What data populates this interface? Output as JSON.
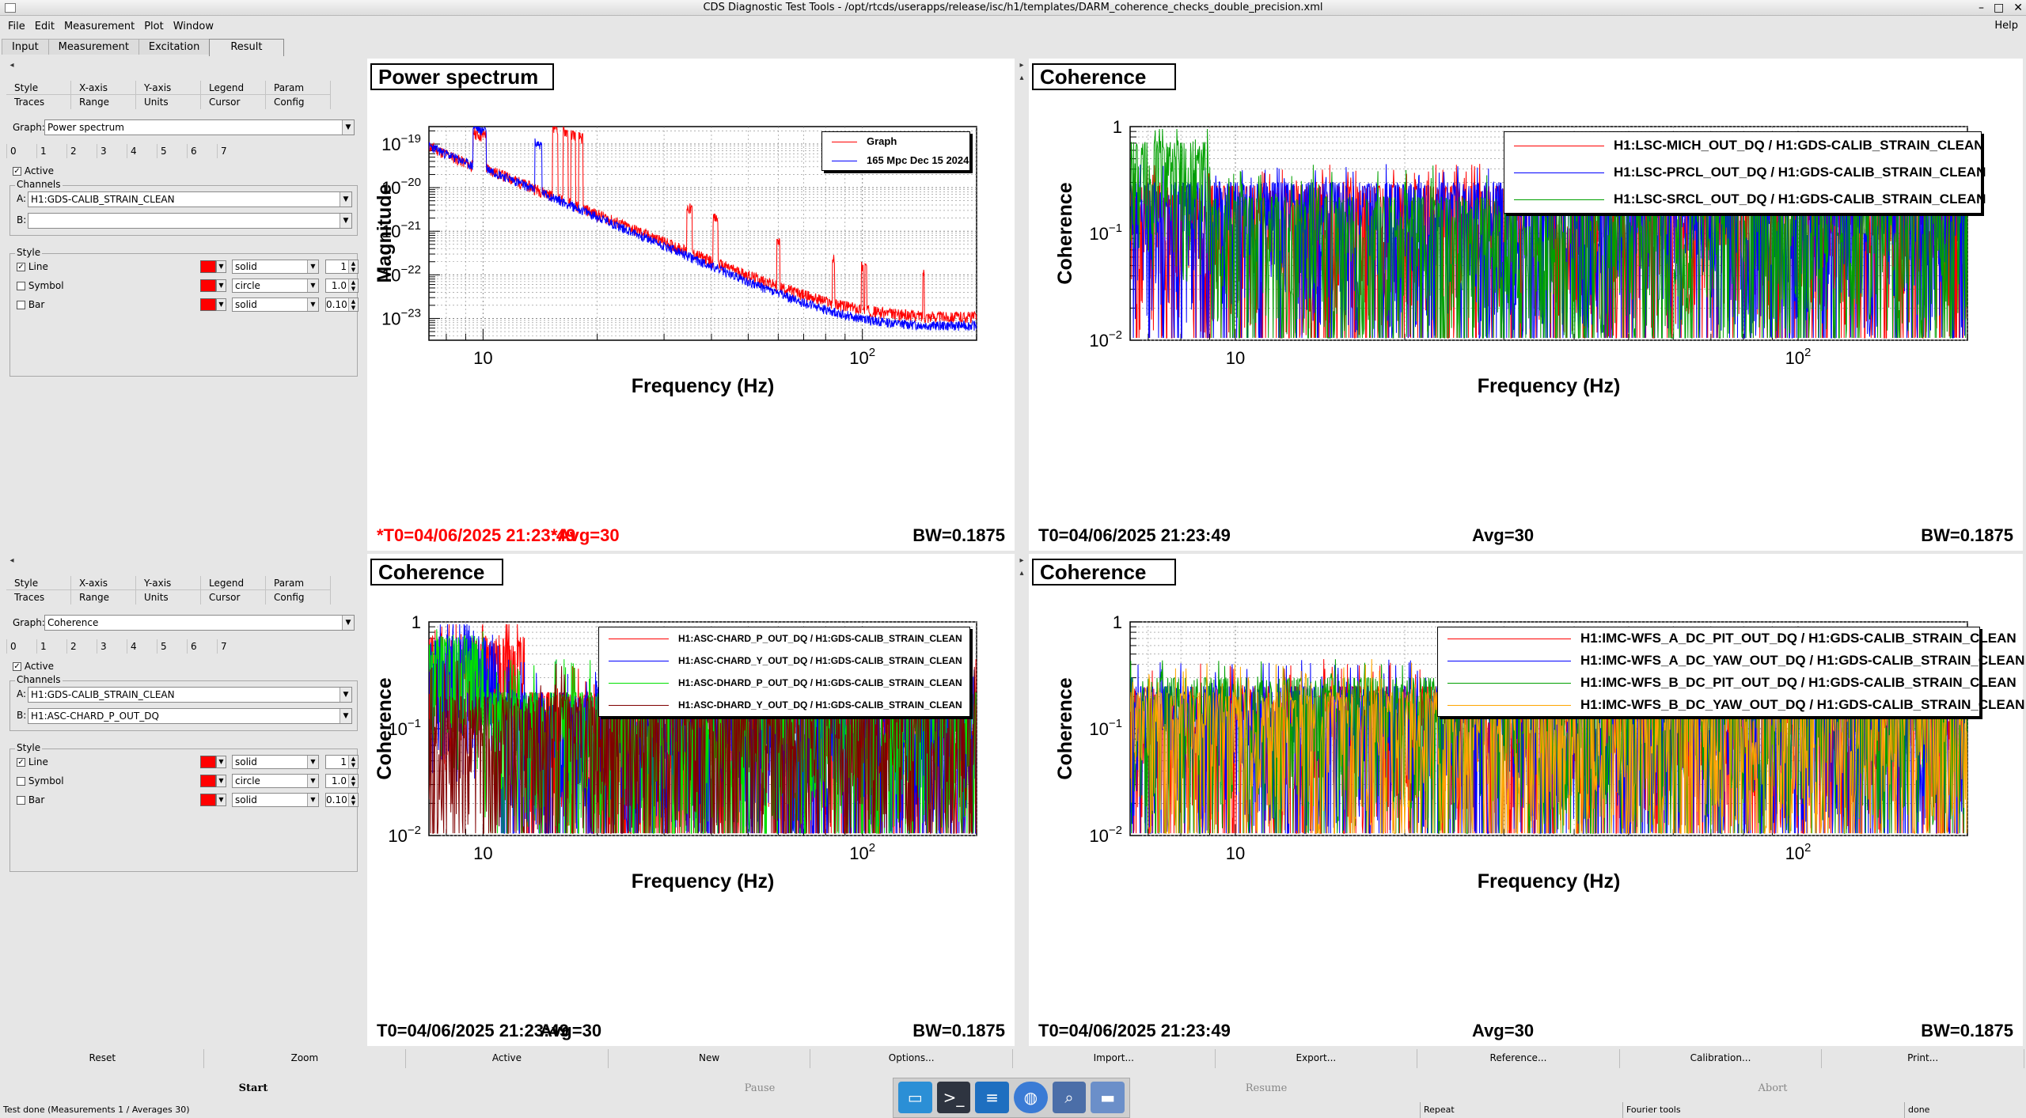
{
  "window": {
    "title": "CDS Diagnostic Test Tools - /opt/rtcds/userapps/release/isc/h1/templates/DARM_coherence_checks_double_precision.xml",
    "close_glyph": "✕",
    "minimize_glyph": "–",
    "maximize_glyph": "□"
  },
  "menu": {
    "items": [
      "File",
      "Edit",
      "Measurement",
      "Plot",
      "Window"
    ],
    "help": "Help"
  },
  "tabs": [
    "Input",
    "Measurement",
    "Excitation",
    "Result"
  ],
  "selected_tab": "Result",
  "control_panels": [
    {
      "tab_row1": [
        "Style",
        "X-axis",
        "Y-axis",
        "Legend",
        "Param"
      ],
      "tab_row2": [
        "Traces",
        "Range",
        "Units",
        "Cursor",
        "Config"
      ],
      "graph_label": "Graph:",
      "graph_value": "Power spectrum",
      "trace_numbers": [
        "0",
        "1",
        "2",
        "3",
        "4",
        "5",
        "6",
        "7"
      ],
      "active_label": "Active",
      "channels_label": "Channels",
      "channel_a_label": "A:",
      "channel_a": "H1:GDS-CALIB_STRAIN_CLEAN",
      "channel_b_label": "B:",
      "channel_b": "",
      "style_label": "Style",
      "style_rows": [
        {
          "name": "Line",
          "checked": true,
          "style": "solid",
          "value": "1"
        },
        {
          "name": "Symbol",
          "checked": false,
          "style": "circle",
          "value": "1.0"
        },
        {
          "name": "Bar",
          "checked": false,
          "style": "solid",
          "value": "0.10"
        }
      ]
    },
    {
      "tab_row1": [
        "Style",
        "X-axis",
        "Y-axis",
        "Legend",
        "Param"
      ],
      "tab_row2": [
        "Traces",
        "Range",
        "Units",
        "Cursor",
        "Config"
      ],
      "graph_label": "Graph:",
      "graph_value": "Coherence",
      "trace_numbers": [
        "0",
        "1",
        "2",
        "3",
        "4",
        "5",
        "6",
        "7"
      ],
      "active_label": "Active",
      "channels_label": "Channels",
      "channel_a_label": "A:",
      "channel_a": "H1:GDS-CALIB_STRAIN_CLEAN",
      "channel_b_label": "B:",
      "channel_b": "H1:ASC-CHARD_P_OUT_DQ",
      "style_label": "Style",
      "style_rows": [
        {
          "name": "Line",
          "checked": true,
          "style": "solid",
          "value": "1"
        },
        {
          "name": "Symbol",
          "checked": false,
          "style": "circle",
          "value": "1.0"
        },
        {
          "name": "Bar",
          "checked": false,
          "style": "solid",
          "value": "0.10"
        }
      ]
    }
  ],
  "colors": {
    "red": "#ff0000",
    "blue": "#0000ff",
    "green": "#00a000",
    "light_green": "#00e000",
    "dark_red": "#800000",
    "orange": "#ffa500",
    "status_red": "#ff0000"
  },
  "plots": [
    {
      "title": "Power spectrum",
      "ylabel": "Magnitude",
      "xlabel": "Frequency (Hz)",
      "y_ticks": [
        "10",
        "10",
        "10",
        "10",
        "10"
      ],
      "y_exps": [
        "−19",
        "−20",
        "−21",
        "−22",
        "−23"
      ],
      "x_ticks": [
        "10",
        "10"
      ],
      "x_exps": [
        "",
        "2"
      ],
      "legend": [
        "Graph",
        "165 Mpc Dec 15 2024"
      ],
      "t0": "*T0=04/06/2025 21:23:49",
      "avg": "*Avg=30",
      "bw": "BW=0.1875"
    },
    {
      "title": "Coherence",
      "ylabel": "Coherence",
      "xlabel": "Frequency (Hz)",
      "y_ticks": [
        "1",
        "10",
        "10"
      ],
      "y_exps": [
        "",
        "−1",
        "−2"
      ],
      "x_ticks": [
        "10",
        "10"
      ],
      "x_exps": [
        "",
        "2"
      ],
      "legend": [
        "H1:LSC-MICH_OUT_DQ / H1:GDS-CALIB_STRAIN_CLEAN",
        "H1:LSC-PRCL_OUT_DQ / H1:GDS-CALIB_STRAIN_CLEAN",
        "H1:LSC-SRCL_OUT_DQ / H1:GDS-CALIB_STRAIN_CLEAN"
      ],
      "t0": "T0=04/06/2025 21:23:49",
      "avg": "Avg=30",
      "bw": "BW=0.1875"
    },
    {
      "title": "Coherence",
      "ylabel": "Coherence",
      "xlabel": "Frequency (Hz)",
      "y_ticks": [
        "1",
        "10",
        "10"
      ],
      "y_exps": [
        "",
        "−1",
        "−2"
      ],
      "x_ticks": [
        "10",
        "10"
      ],
      "x_exps": [
        "",
        "2"
      ],
      "legend": [
        "H1:ASC-CHARD_P_OUT_DQ / H1:GDS-CALIB_STRAIN_CLEAN",
        "H1:ASC-CHARD_Y_OUT_DQ / H1:GDS-CALIB_STRAIN_CLEAN",
        "H1:ASC-DHARD_P_OUT_DQ / H1:GDS-CALIB_STRAIN_CLEAN",
        "H1:ASC-DHARD_Y_OUT_DQ / H1:GDS-CALIB_STRAIN_CLEAN"
      ],
      "t0": "T0=04/06/2025 21:23:49",
      "avg": "Avg=30",
      "bw": "BW=0.1875"
    },
    {
      "title": "Coherence",
      "ylabel": "Coherence",
      "xlabel": "Frequency (Hz)",
      "y_ticks": [
        "1",
        "10",
        "10"
      ],
      "y_exps": [
        "",
        "−1",
        "−2"
      ],
      "x_ticks": [
        "10",
        "10"
      ],
      "x_exps": [
        "",
        "2"
      ],
      "legend": [
        "H1:IMC-WFS_A_DC_PIT_OUT_DQ / H1:GDS-CALIB_STRAIN_CLEAN",
        "H1:IMC-WFS_A_DC_YAW_OUT_DQ / H1:GDS-CALIB_STRAIN_CLEAN",
        "H1:IMC-WFS_B_DC_PIT_OUT_DQ / H1:GDS-CALIB_STRAIN_CLEAN",
        "H1:IMC-WFS_B_DC_YAW_OUT_DQ / H1:GDS-CALIB_STRAIN_CLEAN"
      ],
      "t0": "T0=04/06/2025 21:23:49",
      "avg": "Avg=30",
      "bw": "BW=0.1875"
    }
  ],
  "bottom_buttons": [
    "Reset",
    "Zoom",
    "Active",
    "New",
    "Options...",
    "Import...",
    "Export...",
    "Reference...",
    "Calibration...",
    "Print..."
  ],
  "run_buttons": [
    "Start",
    "Pause",
    "Resume",
    "Abort"
  ],
  "statusbar": {
    "message": "Test done (Measurements 1 / Averages 30)",
    "repeat": "Repeat",
    "fourier": "Fourier tools",
    "done": "done"
  }
}
